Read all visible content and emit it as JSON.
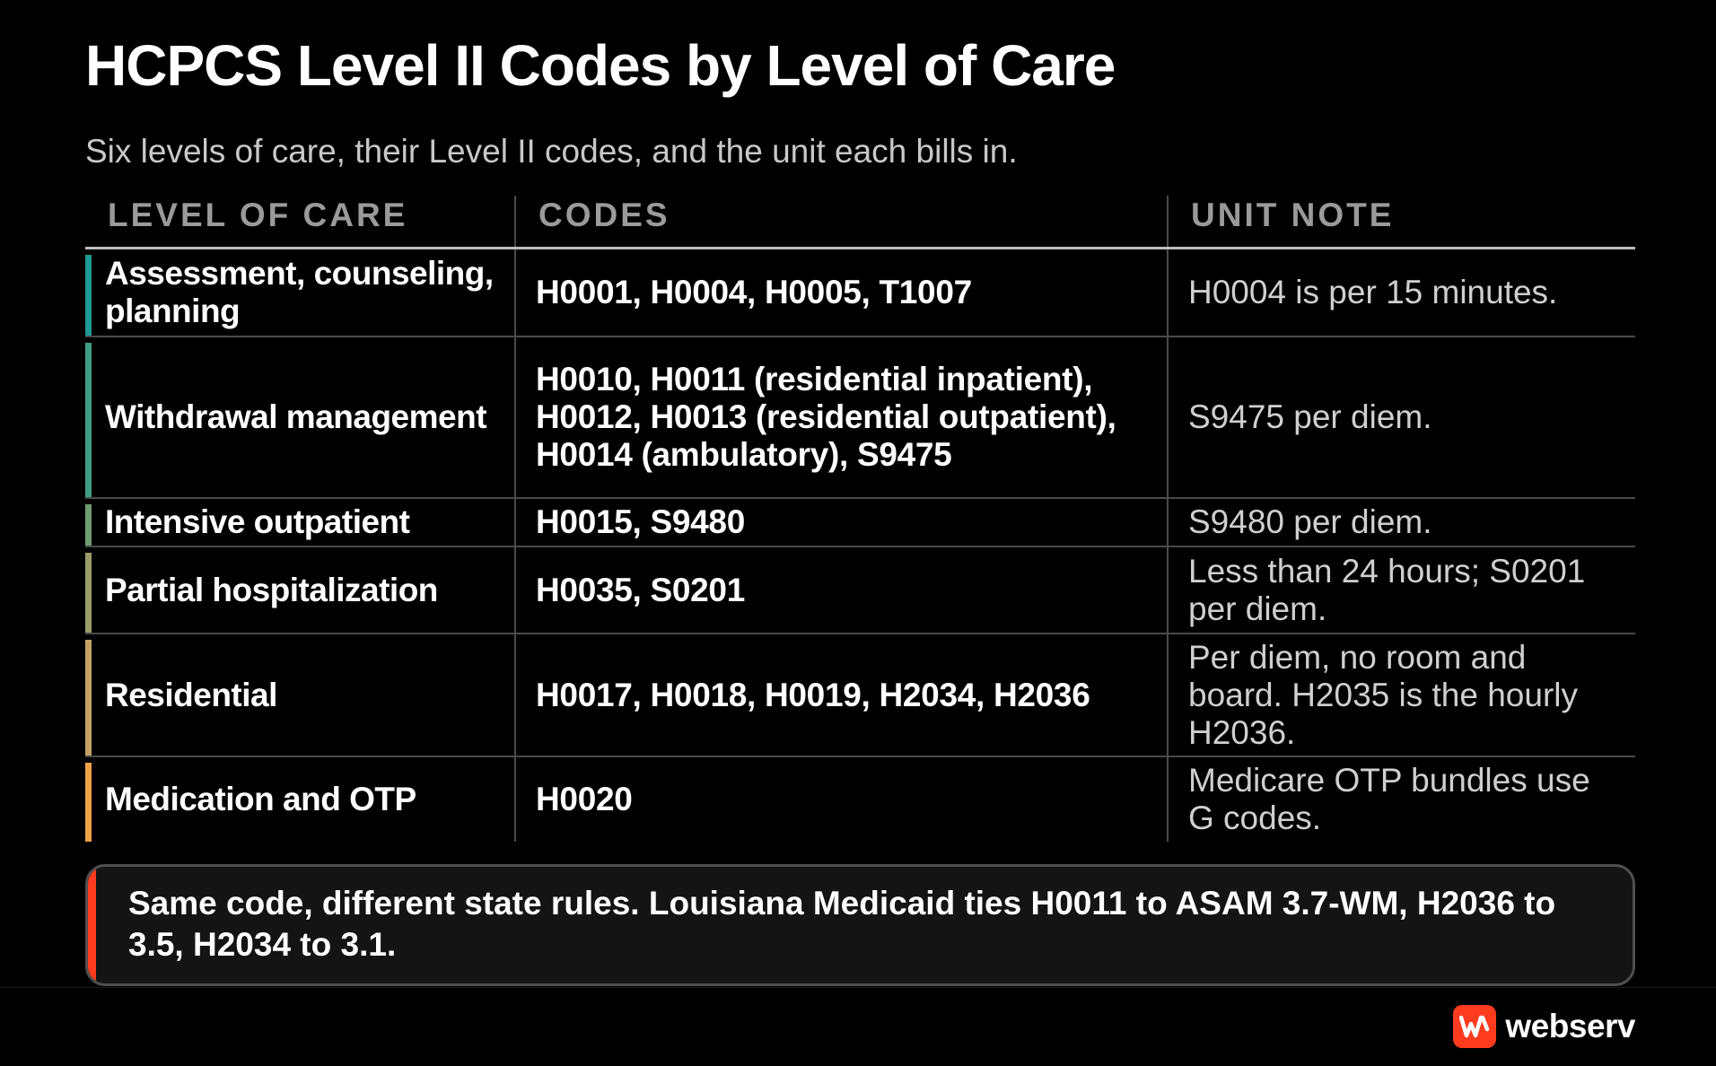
{
  "title": "HCPCS Level II Codes by Level of Care",
  "subtitle": "Six levels of care, their Level II codes, and the unit each bills in.",
  "table": {
    "headers": [
      "LEVEL OF CARE",
      "CODES",
      "UNIT NOTE"
    ],
    "rows": [
      {
        "level": "Assessment, counseling, planning",
        "codes": "H0001, H0004, H0005, T1007",
        "note": "H0004 is per 15 minutes.",
        "accent": "#1f9a94"
      },
      {
        "level": "Withdrawal management",
        "codes": "H0010, H0011 (residential inpatient), H0012, H0013 (residential outpatient), H0014 (ambulatory), S9475",
        "note": "S9475 per diem.",
        "accent": "#3f9e84"
      },
      {
        "level": "Intensive outpatient",
        "codes": "H0015, S9480",
        "note": "S9480 per diem.",
        "accent": "#6f9b70"
      },
      {
        "level": "Partial hospitalization",
        "codes": "H0035, S0201",
        "note": "Less than 24 hours; S0201 per diem.",
        "accent": "#9c9c68"
      },
      {
        "level": "Residential",
        "codes": "H0017, H0018, H0019, H2034, H2036",
        "note": "Per diem, no room and board. H2035 is the hourly H2036.",
        "accent": "#c5a064"
      },
      {
        "level": "Medication and OTP",
        "codes": "H0020",
        "note": "Medicare OTP bundles use G codes.",
        "accent": "#f0a24a"
      }
    ]
  },
  "callout": {
    "lead": "Same code, different state rules.",
    "body": " Louisiana Medicaid ties H0011 to ASAM 3.7-WM, H2036 to 3.5, H2034 to 3.1.",
    "accent": "#ff3b1f"
  },
  "brand": {
    "name": "webserv",
    "icon": "webserv-logo-icon",
    "color": "#ff3b1f"
  }
}
